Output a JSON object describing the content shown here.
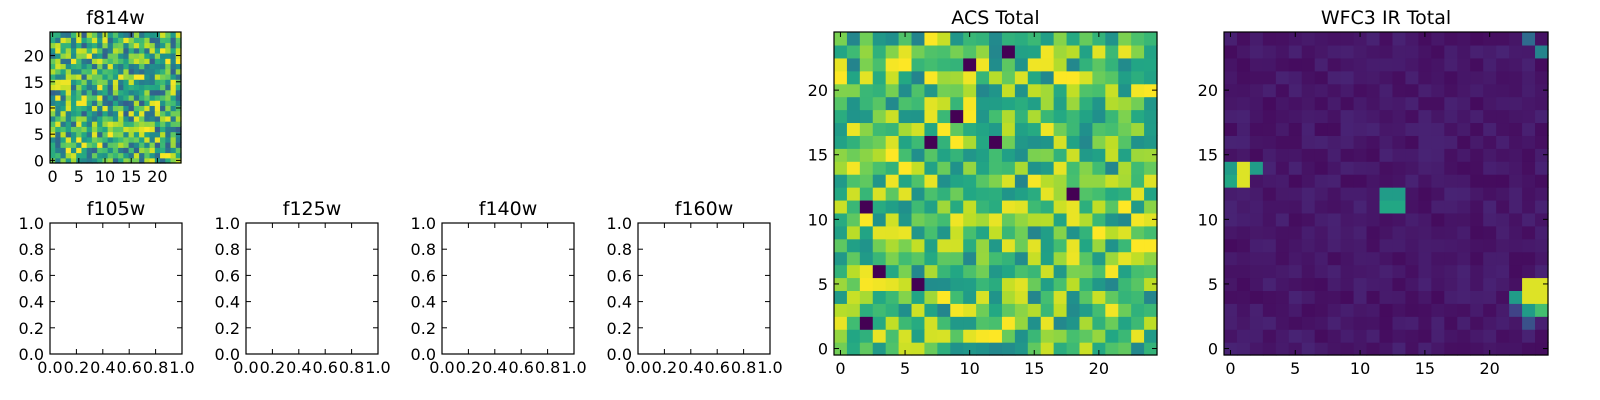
{
  "chart_data": [
    {
      "id": "f814w",
      "type": "heatmap",
      "title": "f814w",
      "grid_size": 25,
      "xticks": [
        0,
        5,
        10,
        15,
        20
      ],
      "yticks": [
        0,
        5,
        10,
        15,
        20
      ],
      "colormap": "viridis",
      "pattern": "noise",
      "value_range": [
        0.3,
        1.0
      ]
    },
    {
      "id": "f105w",
      "type": "empty",
      "title": "f105w",
      "xticks": [
        "0.0",
        "0.2",
        "0.4",
        "0.6",
        "0.8",
        "1.0"
      ],
      "yticks": [
        "0.0",
        "0.2",
        "0.4",
        "0.6",
        "0.8",
        "1.0"
      ],
      "xlim": [
        0,
        1
      ],
      "ylim": [
        0,
        1
      ]
    },
    {
      "id": "f125w",
      "type": "empty",
      "title": "f125w",
      "xticks": [
        "0.0",
        "0.2",
        "0.4",
        "0.6",
        "0.8",
        "1.0"
      ],
      "yticks": [
        "0.0",
        "0.2",
        "0.4",
        "0.6",
        "0.8",
        "1.0"
      ],
      "xlim": [
        0,
        1
      ],
      "ylim": [
        0,
        1
      ]
    },
    {
      "id": "f140w",
      "type": "empty",
      "title": "f140w",
      "xticks": [
        "0.0",
        "0.2",
        "0.4",
        "0.6",
        "0.8",
        "1.0"
      ],
      "yticks": [
        "0.0",
        "0.2",
        "0.4",
        "0.6",
        "0.8",
        "1.0"
      ],
      "xlim": [
        0,
        1
      ],
      "ylim": [
        0,
        1
      ]
    },
    {
      "id": "f160w",
      "type": "empty",
      "title": "f160w",
      "xticks": [
        "0.0",
        "0.2",
        "0.4",
        "0.6",
        "0.8",
        "1.0"
      ],
      "yticks": [
        "0.0",
        "0.2",
        "0.4",
        "0.6",
        "0.8",
        "1.0"
      ],
      "xlim": [
        0,
        1
      ],
      "ylim": [
        0,
        1
      ]
    },
    {
      "id": "acs-total",
      "type": "heatmap",
      "title": "ACS Total",
      "grid_size": 25,
      "xticks": [
        0,
        5,
        10,
        15,
        20
      ],
      "yticks": [
        0,
        5,
        10,
        15,
        20
      ],
      "colormap": "viridis",
      "pattern": "noise",
      "value_range": [
        0.45,
        1.0
      ],
      "dark_pixels": [
        [
          13,
          23
        ],
        [
          10,
          22
        ],
        [
          9,
          18
        ],
        [
          7,
          16
        ],
        [
          12,
          16
        ],
        [
          18,
          12
        ],
        [
          2,
          11
        ],
        [
          3,
          6
        ],
        [
          6,
          5
        ],
        [
          2,
          2
        ]
      ],
      "bright_pixels": [
        [
          23,
          8
        ],
        [
          24,
          8
        ],
        [
          5,
          22
        ],
        [
          18,
          21
        ],
        [
          4,
          15
        ],
        [
          5,
          14
        ],
        [
          20,
          9
        ],
        [
          8,
          4
        ]
      ]
    },
    {
      "id": "wfc3-ir-total",
      "type": "heatmap",
      "title": "WFC3 IR Total",
      "grid_size": 25,
      "xticks": [
        0,
        5,
        10,
        15,
        20
      ],
      "yticks": [
        0,
        5,
        10,
        15,
        20
      ],
      "colormap": "viridis",
      "pattern": "sources",
      "value_range": [
        0.0,
        1.0
      ],
      "sources": [
        {
          "x": 23,
          "y": 24,
          "value": 0.35
        },
        {
          "x": 24,
          "y": 23,
          "value": 0.45
        },
        {
          "x": 0,
          "y": 13,
          "value": 0.6
        },
        {
          "x": 1,
          "y": 13,
          "value": 0.95
        },
        {
          "x": 1,
          "y": 14,
          "value": 0.95
        },
        {
          "x": 2,
          "y": 14,
          "value": 0.55
        },
        {
          "x": 0,
          "y": 14,
          "value": 0.55
        },
        {
          "x": 12,
          "y": 11,
          "value": 0.6
        },
        {
          "x": 13,
          "y": 11,
          "value": 0.6
        },
        {
          "x": 12,
          "y": 12,
          "value": 0.55
        },
        {
          "x": 13,
          "y": 12,
          "value": 0.55
        },
        {
          "x": 23,
          "y": 5,
          "value": 0.95
        },
        {
          "x": 24,
          "y": 5,
          "value": 0.95
        },
        {
          "x": 23,
          "y": 4,
          "value": 0.95
        },
        {
          "x": 24,
          "y": 4,
          "value": 0.95
        },
        {
          "x": 22,
          "y": 4,
          "value": 0.55
        },
        {
          "x": 23,
          "y": 3,
          "value": 0.55
        },
        {
          "x": 24,
          "y": 3,
          "value": 0.7
        },
        {
          "x": 23,
          "y": 2,
          "value": 0.25
        },
        {
          "x": 22,
          "y": 3,
          "value": 0.2
        }
      ]
    }
  ]
}
